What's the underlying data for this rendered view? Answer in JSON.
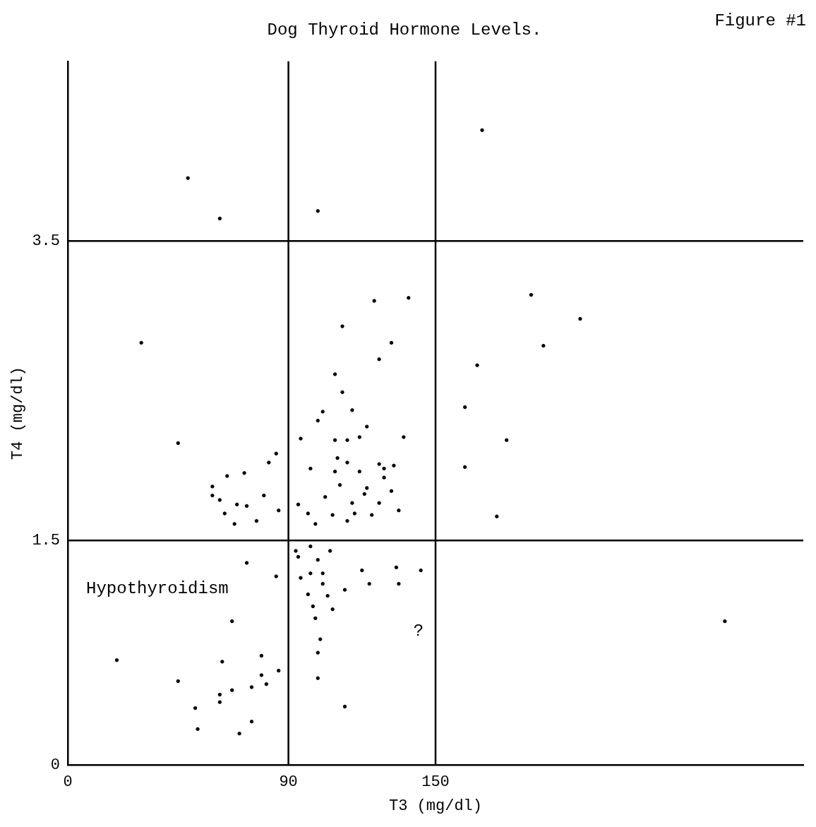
{
  "chart_data": {
    "type": "scatter",
    "title": "Dog Thyroid Hormone Levels.",
    "xlabel": "T3 (mg/dl)",
    "ylabel": "T4 (mg/dl)",
    "annotations": [
      "Figure #1",
      "Hypothyroidism",
      "?"
    ],
    "xlim": [
      0,
      300
    ],
    "ylim": [
      0,
      4.7
    ],
    "xticks": [
      0,
      90,
      150
    ],
    "yticks": [
      0,
      1.5,
      3.5
    ],
    "grid": false,
    "legend": false,
    "marker": "circle",
    "ref_lines": [
      {
        "axis": "x",
        "value": 90,
        "label": null,
        "color": "#000000"
      },
      {
        "axis": "x",
        "value": 150,
        "label": null,
        "color": "#000000"
      },
      {
        "axis": "y",
        "value": 1.5,
        "label": null,
        "color": "#000000"
      },
      {
        "axis": "y",
        "value": 3.5,
        "label": null,
        "color": "#000000"
      }
    ],
    "series": [
      {
        "color": "#000000",
        "x": [
          169,
          49,
          62,
          102,
          125,
          139,
          189,
          209,
          112,
          30,
          132,
          194,
          127,
          167,
          109,
          112,
          162,
          104,
          116,
          102,
          122,
          95,
          109,
          114,
          119,
          137,
          179,
          45,
          85,
          82,
          110,
          114,
          127,
          129,
          133,
          162,
          65,
          72,
          99,
          109,
          119,
          129,
          59,
          111,
          122,
          132,
          80,
          59,
          69,
          73,
          105,
          94,
          116,
          121,
          127,
          62,
          86,
          98,
          108,
          117,
          124,
          135,
          64,
          68,
          77,
          101,
          114,
          175,
          93,
          99,
          107,
          94,
          102,
          73,
          120,
          134,
          144,
          85,
          95,
          99,
          104,
          104,
          123,
          135,
          113,
          98,
          106,
          100,
          108,
          101,
          67,
          268,
          103,
          20,
          102,
          79,
          63,
          86,
          79,
          45,
          102,
          67,
          75,
          81,
          62,
          62,
          52,
          113,
          53,
          75,
          70
        ],
        "values": [
          4.24,
          3.92,
          3.65,
          3.7,
          3.1,
          3.12,
          3.14,
          2.98,
          2.93,
          2.82,
          2.82,
          2.8,
          2.71,
          2.67,
          2.61,
          2.49,
          2.39,
          2.36,
          2.37,
          2.3,
          2.26,
          2.18,
          2.17,
          2.17,
          2.19,
          2.19,
          2.17,
          2.15,
          2.08,
          2.02,
          2.05,
          2.02,
          2.01,
          1.98,
          2.0,
          1.99,
          1.93,
          1.95,
          1.98,
          1.96,
          1.96,
          1.92,
          1.86,
          1.87,
          1.85,
          1.83,
          1.8,
          1.8,
          1.74,
          1.73,
          1.79,
          1.74,
          1.75,
          1.81,
          1.75,
          1.77,
          1.7,
          1.68,
          1.67,
          1.68,
          1.67,
          1.7,
          1.68,
          1.61,
          1.63,
          1.61,
          1.63,
          1.66,
          1.43,
          1.46,
          1.43,
          1.39,
          1.37,
          1.35,
          1.3,
          1.32,
          1.3,
          1.26,
          1.25,
          1.28,
          1.28,
          1.21,
          1.21,
          1.21,
          1.17,
          1.14,
          1.13,
          1.06,
          1.04,
          0.98,
          0.96,
          0.96,
          0.84,
          0.7,
          0.75,
          0.73,
          0.69,
          0.63,
          0.6,
          0.56,
          0.58,
          0.5,
          0.52,
          0.54,
          0.47,
          0.42,
          0.38,
          0.39,
          0.24,
          0.29,
          0.21
        ]
      }
    ]
  }
}
